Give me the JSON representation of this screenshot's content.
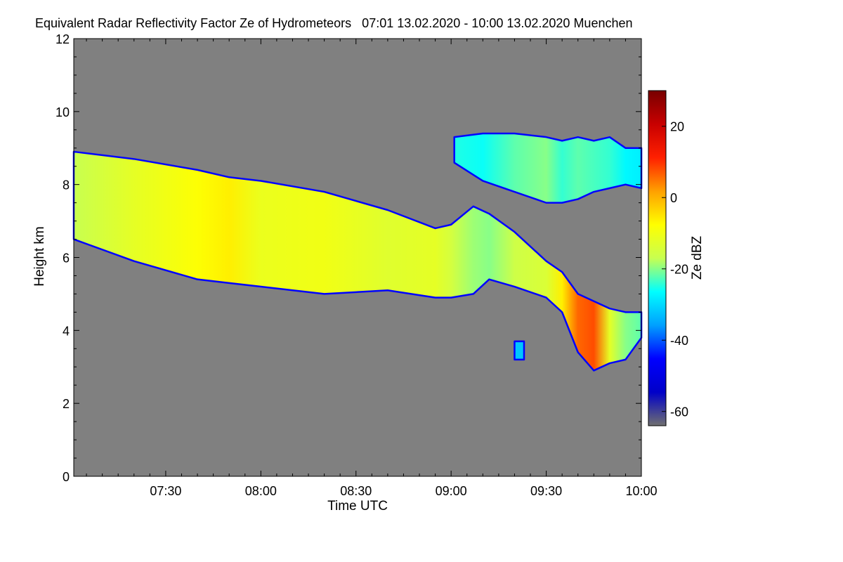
{
  "chart_data": {
    "type": "heatmap",
    "title": "Equivalent Radar Reflectivity Factor Ze of Hydrometeors   07:01 13.02.2020 - 10:00 13.02.2020 Muenchen",
    "xlabel": "Time UTC",
    "ylabel": "Height km",
    "colorbar_label": "Ze dBZ",
    "xlim": [
      "07:01",
      "10:00"
    ],
    "ylim": [
      0,
      12
    ],
    "x_ticks": [
      "07:30",
      "08:00",
      "08:30",
      "09:00",
      "09:30",
      "10:00"
    ],
    "y_ticks": [
      "0",
      "2",
      "4",
      "6",
      "8",
      "10",
      "12"
    ],
    "colorbar_ticks": [
      "-60",
      "-40",
      "-20",
      "0",
      "20"
    ],
    "colorbar_range": [
      -64,
      30
    ],
    "background_color": "#808080",
    "colormap": [
      "#707070",
      "#0000c8",
      "#0000ff",
      "#00a0ff",
      "#00ffff",
      "#c8ff50",
      "#ffff00",
      "#ffa000",
      "#ff2000",
      "#c80000",
      "#780000"
    ],
    "layers": [
      {
        "name": "lower cloud band",
        "time": [
          "07:01",
          "07:20",
          "07:40",
          "07:50",
          "08:00",
          "08:20",
          "08:40",
          "08:55",
          "09:00",
          "09:07",
          "09:12",
          "09:20",
          "09:30",
          "09:35",
          "09:40",
          "09:45",
          "09:50",
          "09:55",
          "10:00"
        ],
        "top_km": [
          8.9,
          8.7,
          8.4,
          8.2,
          8.1,
          7.8,
          7.3,
          6.8,
          6.9,
          7.4,
          7.2,
          6.7,
          5.9,
          5.6,
          5.0,
          4.8,
          4.6,
          4.5,
          4.5
        ],
        "base_km": [
          6.5,
          5.9,
          5.4,
          5.3,
          5.2,
          5.0,
          5.1,
          4.9,
          4.9,
          5.0,
          5.4,
          5.2,
          4.9,
          4.5,
          3.4,
          2.9,
          3.1,
          3.2,
          3.8
        ],
        "core_dbz": [
          -17,
          -12,
          -8,
          -6,
          -11,
          -10,
          -13,
          -12,
          -15,
          -19,
          -20,
          -16,
          -14,
          -6,
          6,
          8,
          -12,
          -20,
          -22
        ]
      },
      {
        "name": "upper cloud band",
        "time": [
          "09:01",
          "09:10",
          "09:20",
          "09:30",
          "09:35",
          "09:40",
          "09:45",
          "09:50",
          "09:55",
          "10:00"
        ],
        "top_km": [
          9.3,
          9.4,
          9.4,
          9.3,
          9.2,
          9.3,
          9.2,
          9.3,
          9.0,
          9.0
        ],
        "base_km": [
          8.6,
          8.1,
          7.8,
          7.5,
          7.5,
          7.6,
          7.8,
          7.9,
          8.0,
          7.9
        ],
        "core_dbz": [
          -25,
          -26,
          -22,
          -20,
          -24,
          -22,
          -23,
          -24,
          -27,
          -28
        ]
      },
      {
        "name": "small echo near 09:20",
        "time": [
          "09:20",
          "09:23"
        ],
        "top_km": [
          3.7,
          3.7
        ],
        "base_km": [
          3.2,
          3.2
        ],
        "core_dbz": [
          -32,
          -32
        ]
      }
    ]
  }
}
